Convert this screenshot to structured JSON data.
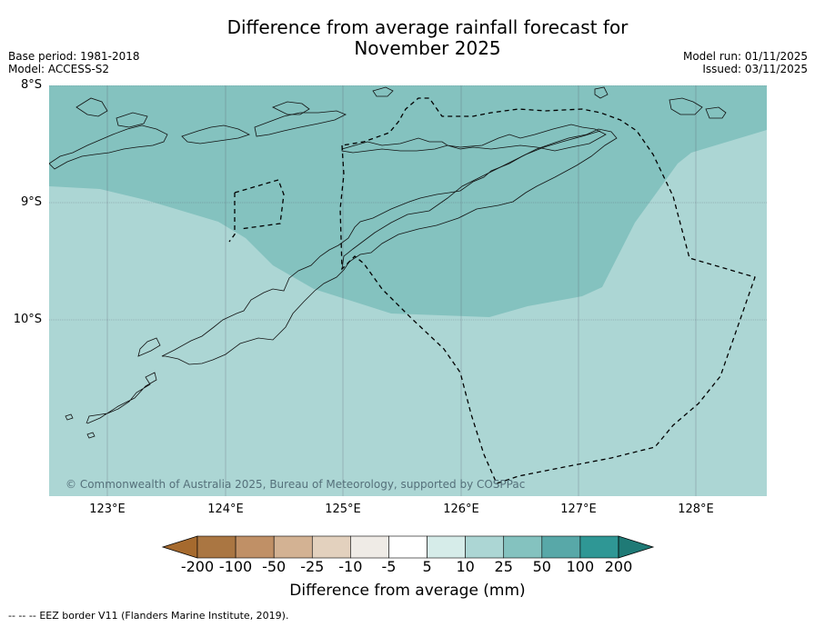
{
  "title_line1": "Difference from average rainfall forecast for",
  "title_line2": "November 2025",
  "base_period": "Base period: 1981-2018",
  "model": "Model: ACCESS-S2",
  "model_run": "Model run: 01/11/2025",
  "issued": "Issued: 03/11/2025",
  "lat_labels": [
    "8°S",
    "9°S",
    "10°S"
  ],
  "lon_labels": [
    "123°E",
    "124°E",
    "125°E",
    "126°E",
    "127°E",
    "128°E"
  ],
  "copyright": "© Commonwealth of Australia 2025, Bureau of Meteorology, supported by COSPPac",
  "colorbar": {
    "ticks": [
      "-200",
      "-100",
      "-50",
      "-25",
      "-10",
      "-5",
      "5",
      "10",
      "25",
      "50",
      "100",
      "200"
    ],
    "colors": [
      "#a66a2e",
      "#aa7642",
      "#c09066",
      "#d3b293",
      "#e3d1be",
      "#efebe6",
      "#ffffff",
      "#d6ece9",
      "#acd6d4",
      "#84c2bf",
      "#58a8a8",
      "#2f9795",
      "#1f7a76"
    ],
    "label": "Difference from average (mm)"
  },
  "legend_text": "EEZ border V11 (Flanders Marine Institute, 2019).",
  "legend_symbol": "--  --  --",
  "regions": [
    {
      "name": "25 to 50 mm",
      "color": "#84c2bf"
    },
    {
      "name": "10 to 25 mm",
      "color": "#acd6d4"
    }
  ]
}
